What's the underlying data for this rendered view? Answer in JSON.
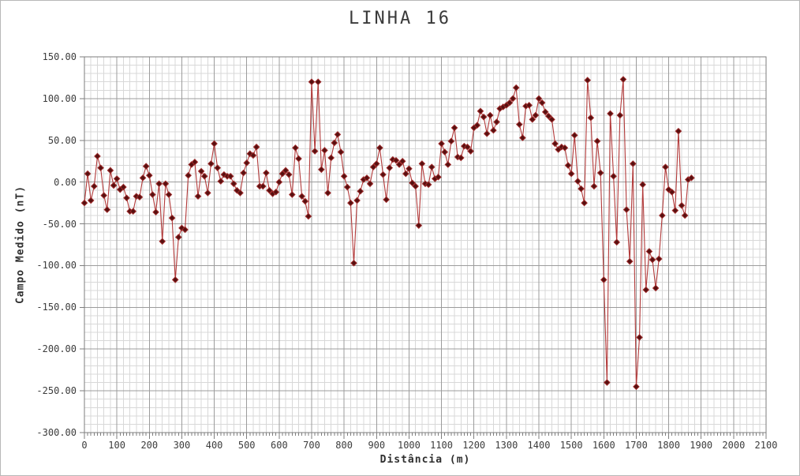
{
  "title": "LINHA 16",
  "chart_data": {
    "type": "line",
    "title": "LINHA 16",
    "xlabel": "Distância (m)",
    "ylabel": "Campo Medido (nT)",
    "xlim": [
      0,
      2100
    ],
    "ylim": [
      -300,
      150
    ],
    "x_major_step": 100,
    "x_minor_grid_step": 20,
    "x_minor_tick_step": 10,
    "y_major_step": 50,
    "y_minor_grid_step": 10,
    "grid": "on",
    "legend": "none",
    "marker": "diamond",
    "x_tick_labels": [
      "0",
      "100",
      "200",
      "300",
      "400",
      "500",
      "600",
      "700",
      "800",
      "900",
      "1000",
      "1100",
      "1200",
      "1300",
      "1400",
      "1500",
      "1600",
      "1700",
      "1800",
      "1900",
      "2000",
      "2100"
    ],
    "y_tick_labels": [
      "150.00",
      "100.00",
      "50.00",
      "0.00",
      "-50.00",
      "-100.00",
      "-150.00",
      "-200.00",
      "-250.00",
      "-300.00"
    ],
    "y_ticks": [
      150,
      100,
      50,
      0,
      -50,
      -100,
      -150,
      -200,
      -250,
      -300
    ],
    "x_ticks": [
      0,
      100,
      200,
      300,
      400,
      500,
      600,
      700,
      800,
      900,
      1000,
      1100,
      1200,
      1300,
      1400,
      1500,
      1600,
      1700,
      1800,
      1900,
      2000,
      2100
    ],
    "colors": {
      "line": "#b23a3a",
      "marker_fill": "#571010",
      "marker_edge": "#9e2b2b",
      "grid_minor": "#d8d8d8",
      "grid_major": "#9c9c9c",
      "plot_border": "#7e7e7e",
      "text": "#3c3c3c"
    },
    "x_start": 0,
    "x_step": 10,
    "values": [
      -25,
      10,
      -22,
      -5,
      31,
      17,
      -16,
      -33,
      14,
      -4,
      4,
      -9,
      -6,
      -19,
      -35,
      -35,
      -17,
      -18,
      5,
      19,
      8,
      -15,
      -36,
      -2,
      -71,
      -2,
      -15,
      -43,
      -117,
      -66,
      -55,
      -57,
      8,
      21,
      24,
      -17,
      13,
      7,
      -13,
      22,
      46,
      17,
      1,
      9,
      7,
      7,
      -2,
      -10,
      -13,
      11,
      23,
      34,
      32,
      42,
      -5,
      -5,
      11,
      -10,
      -14,
      -12,
      0,
      10,
      14,
      9,
      -15,
      41,
      28,
      -17,
      -23,
      -41,
      120,
      37,
      120,
      15,
      38,
      -13,
      29,
      47,
      57,
      36,
      7,
      -6,
      -25,
      -97,
      -22,
      -11,
      3,
      5,
      -2,
      18,
      22,
      41,
      9,
      -21,
      17,
      27,
      26,
      21,
      25,
      10,
      16,
      -1,
      -5,
      -52,
      22,
      -2,
      -3,
      18,
      4,
      6,
      46,
      36,
      21,
      49,
      65,
      30,
      29,
      43,
      42,
      37,
      65,
      68,
      85,
      78,
      58,
      80,
      62,
      72,
      88,
      90,
      92,
      95,
      100,
      113,
      69,
      53,
      91,
      92,
      75,
      80,
      100,
      95,
      84,
      79,
      75,
      46,
      39,
      42,
      41,
      20,
      10,
      56,
      1,
      -8,
      -25,
      122,
      77,
      -5,
      49,
      11,
      -117,
      -240,
      82,
      7,
      -72,
      80,
      123,
      -33,
      -95,
      22,
      -245,
      -186,
      -3,
      -129,
      -83,
      -93,
      -127,
      -92,
      -40,
      18,
      -9,
      -12,
      -34,
      61,
      -28,
      -40,
      3,
      5
    ]
  },
  "layout_note": "single line series with diamond markers, no legend"
}
